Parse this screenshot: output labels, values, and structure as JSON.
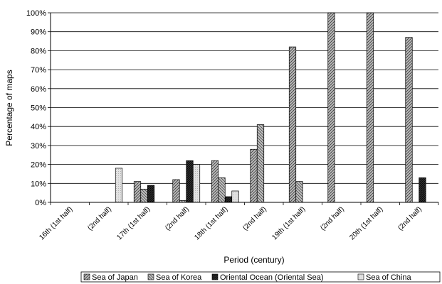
{
  "chart_data": {
    "type": "bar",
    "ylabel": "Percentage of maps",
    "xlabel": "Period (century)",
    "ylim": [
      0,
      100
    ],
    "y_ticks": [
      "0%",
      "10%",
      "20%",
      "30%",
      "40%",
      "50%",
      "60%",
      "70%",
      "80%",
      "90%",
      "100%"
    ],
    "categories": [
      "16th (1st half)",
      "(2nd half)",
      "17th (1st half)",
      "(2nd half)",
      "18th (1st half)",
      "(2nd half)",
      "19th (1st half)",
      "(2nd half)",
      "20th (1st half)",
      "(2nd half)"
    ],
    "grid": true,
    "legend_position": "bottom",
    "series": [
      {
        "name": "Sea of Japan",
        "values": [
          0,
          0,
          11,
          12,
          22,
          28,
          82,
          100,
          100,
          87
        ],
        "pattern": "diag-up"
      },
      {
        "name": "Sea of Korea",
        "values": [
          0,
          0,
          7,
          1,
          13,
          41,
          11,
          0,
          0,
          0
        ],
        "pattern": "diag-down"
      },
      {
        "name": "Oriental Ocean (Oriental Sea)",
        "values": [
          0,
          0,
          9,
          22,
          3,
          0,
          0,
          0,
          0,
          13
        ],
        "pattern": "dark"
      },
      {
        "name": "Sea of China",
        "values": [
          0,
          18,
          0,
          20,
          6,
          0,
          0,
          0,
          0,
          0
        ],
        "pattern": "light"
      }
    ]
  }
}
